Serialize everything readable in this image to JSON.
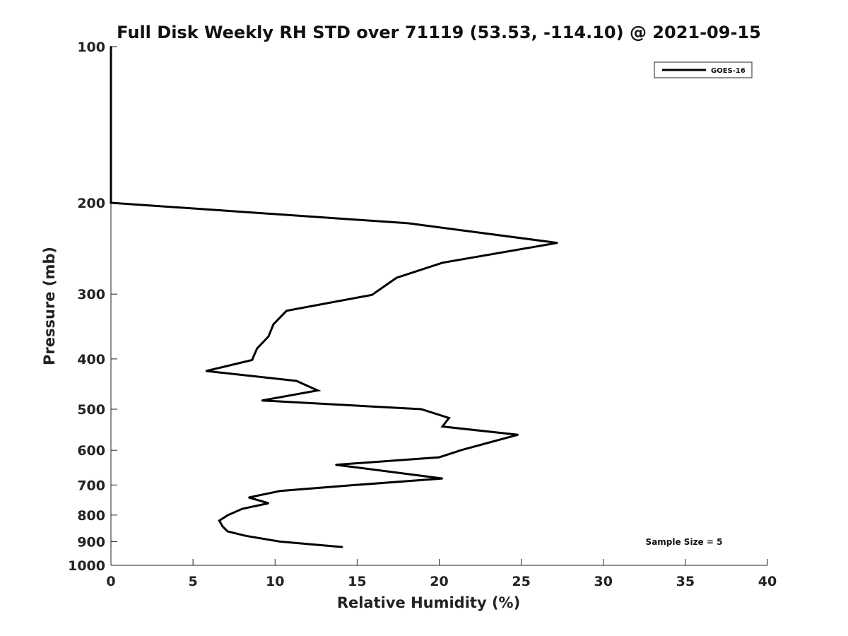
{
  "chart_data": {
    "type": "line",
    "title": "Full Disk Weekly RH STD over 71119 (53.53, -114.10) @ 2021-09-15",
    "xlabel": "Relative Humidity (%)",
    "ylabel": "Pressure (mb)",
    "xlim": [
      0,
      40
    ],
    "ylim": [
      100,
      1000
    ],
    "y_scale": "log",
    "y_inverted": true,
    "x_ticks": [
      0,
      5,
      10,
      15,
      20,
      25,
      30,
      35,
      40
    ],
    "y_ticks": [
      100,
      200,
      300,
      400,
      500,
      600,
      700,
      800,
      900,
      1000
    ],
    "grid": false,
    "legend_position": "top-right",
    "series": [
      {
        "name": "GOES-16",
        "color": "#000000",
        "points": [
          {
            "x": 0,
            "y": 100
          },
          {
            "x": 0,
            "y": 150
          },
          {
            "x": 0,
            "y": 200
          },
          {
            "x": 18.1,
            "y": 219
          },
          {
            "x": 27.2,
            "y": 239
          },
          {
            "x": 20.2,
            "y": 261
          },
          {
            "x": 17.4,
            "y": 279
          },
          {
            "x": 15.9,
            "y": 301
          },
          {
            "x": 10.7,
            "y": 323
          },
          {
            "x": 9.9,
            "y": 343
          },
          {
            "x": 9.6,
            "y": 362
          },
          {
            "x": 8.9,
            "y": 382
          },
          {
            "x": 8.6,
            "y": 402
          },
          {
            "x": 5.8,
            "y": 422
          },
          {
            "x": 11.3,
            "y": 441
          },
          {
            "x": 12.6,
            "y": 460
          },
          {
            "x": 9.2,
            "y": 481
          },
          {
            "x": 18.9,
            "y": 500
          },
          {
            "x": 20.6,
            "y": 520
          },
          {
            "x": 20.2,
            "y": 540
          },
          {
            "x": 24.8,
            "y": 560
          },
          {
            "x": 21.4,
            "y": 599
          },
          {
            "x": 20,
            "y": 619
          },
          {
            "x": 13.7,
            "y": 640
          },
          {
            "x": 20.2,
            "y": 680
          },
          {
            "x": 14.9,
            "y": 700
          },
          {
            "x": 10.3,
            "y": 719
          },
          {
            "x": 8.4,
            "y": 740
          },
          {
            "x": 9.6,
            "y": 759
          },
          {
            "x": 8.0,
            "y": 778
          },
          {
            "x": 7.1,
            "y": 801
          },
          {
            "x": 6.6,
            "y": 820
          },
          {
            "x": 6.8,
            "y": 841
          },
          {
            "x": 7.1,
            "y": 860
          },
          {
            "x": 8.2,
            "y": 877
          },
          {
            "x": 10.3,
            "y": 900
          },
          {
            "x": 14.1,
            "y": 922
          }
        ]
      }
    ],
    "annotation": "Sample Size = 5"
  }
}
